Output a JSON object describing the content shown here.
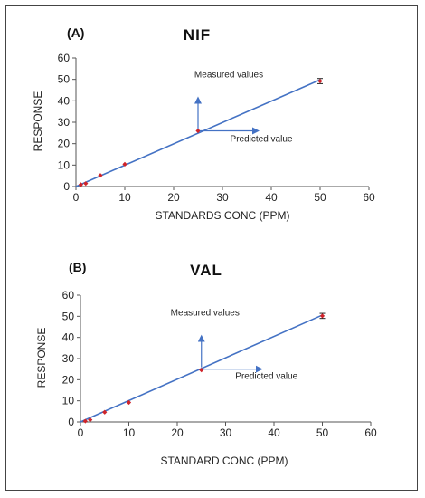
{
  "chart_data": [
    {
      "type": "scatter",
      "panel_label": "(A)",
      "title": "NIF",
      "xlabel": "STANDARDS CONC (PPM)",
      "ylabel": "RESPONSE",
      "xlim": [
        0,
        60
      ],
      "ylim": [
        0,
        60
      ],
      "xticks": [
        "0",
        "10",
        "20",
        "30",
        "40",
        "50",
        "60"
      ],
      "yticks": [
        "0",
        "10",
        "20",
        "30",
        "40",
        "50",
        "60"
      ],
      "points": [
        {
          "x": 1,
          "y": 0.9
        },
        {
          "x": 2,
          "y": 1.4
        },
        {
          "x": 5,
          "y": 5.2
        },
        {
          "x": 10,
          "y": 10.4
        },
        {
          "x": 25,
          "y": 26
        },
        {
          "x": 50,
          "y": 49.2,
          "err": 1.2
        }
      ],
      "trendline": {
        "x1": 0,
        "y1": 0,
        "x2": 50,
        "y2": 49.8
      },
      "annotations": [
        {
          "text": "Measured values",
          "x": 25,
          "y": 26,
          "direction": "up"
        },
        {
          "text": "Predicted value",
          "x": 25,
          "y": 26,
          "direction": "right"
        }
      ],
      "colors": {
        "line": "#4472c4",
        "marker": "#d0242a"
      }
    },
    {
      "type": "scatter",
      "panel_label": "(B)",
      "title": "VAL",
      "xlabel": "STANDARD CONC (PPM)",
      "ylabel": "RESPONSE",
      "xlim": [
        0,
        60
      ],
      "ylim": [
        0,
        60
      ],
      "xticks": [
        "0",
        "10",
        "20",
        "30",
        "40",
        "50",
        "60"
      ],
      "yticks": [
        "0",
        "10",
        "20",
        "30",
        "40",
        "50",
        "60"
      ],
      "points": [
        {
          "x": 1,
          "y": 0.4
        },
        {
          "x": 2,
          "y": 1.0
        },
        {
          "x": 5,
          "y": 4.6
        },
        {
          "x": 10,
          "y": 9.2
        },
        {
          "x": 25,
          "y": 24.6
        },
        {
          "x": 50,
          "y": 50.2,
          "err": 1.2
        }
      ],
      "trendline": {
        "x1": 0,
        "y1": 0,
        "x2": 50,
        "y2": 50.6
      },
      "annotations": [
        {
          "text": "Measured values",
          "x": 25,
          "y": 25,
          "direction": "up"
        },
        {
          "text": "Predicted value",
          "x": 25,
          "y": 25,
          "direction": "right"
        }
      ],
      "colors": {
        "line": "#4472c4",
        "marker": "#d0242a"
      }
    }
  ]
}
